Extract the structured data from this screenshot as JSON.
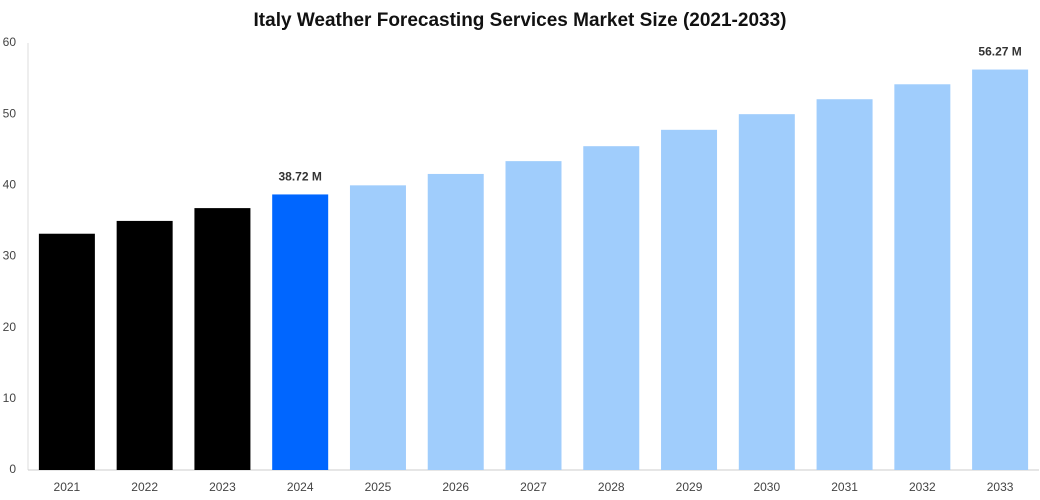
{
  "chart_data": {
    "type": "bar",
    "title": "Italy Weather Forecasting Services Market Size (2021-2033)",
    "categories": [
      "2021",
      "2022",
      "2023",
      "2024",
      "2025",
      "2026",
      "2027",
      "2028",
      "2029",
      "2030",
      "2031",
      "2032",
      "2033"
    ],
    "values": [
      33.2,
      35.0,
      36.8,
      38.72,
      40.0,
      41.6,
      43.4,
      45.5,
      47.8,
      50.0,
      52.1,
      54.2,
      56.27
    ],
    "value_labels": [
      null,
      null,
      null,
      "38.72 M",
      null,
      null,
      null,
      null,
      null,
      null,
      null,
      null,
      "56.27 M"
    ],
    "colors": [
      "#000000",
      "#000000",
      "#000000",
      "#0066ff",
      "#a0cdfc",
      "#a0cdfc",
      "#a0cdfc",
      "#a0cdfc",
      "#a0cdfc",
      "#a0cdfc",
      "#a0cdfc",
      "#a0cdfc",
      "#a0cdfc"
    ],
    "ylim": [
      0,
      60
    ],
    "yticks": [
      0,
      10,
      20,
      30,
      40,
      50,
      60
    ],
    "grid": false
  }
}
